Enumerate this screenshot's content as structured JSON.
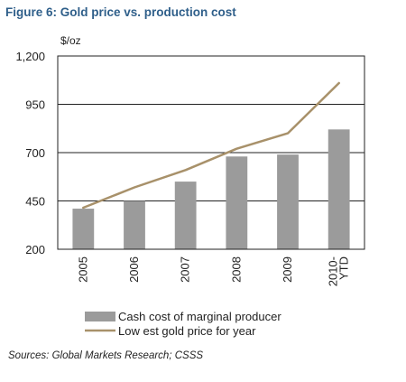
{
  "figure": {
    "title": "Figure 6: Gold price vs. production cost",
    "source": "Sources: Global Markets Research; CSSS"
  },
  "chart_data": {
    "type": "bar",
    "title": "Figure 6: Gold price vs. production cost",
    "xlabel": "",
    "ylabel": "$/oz",
    "ylim": [
      200,
      1200
    ],
    "yticks": [
      "1,200",
      "950",
      "700",
      "450",
      "200"
    ],
    "ytick_values": [
      1200,
      950,
      700,
      450,
      200
    ],
    "grid": true,
    "legend_position": "bottom",
    "categories": [
      {
        "lines": [
          "2005"
        ]
      },
      {
        "lines": [
          "2006"
        ]
      },
      {
        "lines": [
          "2007"
        ]
      },
      {
        "lines": [
          "2008"
        ]
      },
      {
        "lines": [
          "2009"
        ]
      },
      {
        "lines": [
          "2010-",
          "YTD"
        ]
      }
    ],
    "series": [
      {
        "name": "Cash cost of marginal producer",
        "type": "bar",
        "color": "#9b9b9b",
        "values": [
          410,
          450,
          550,
          680,
          690,
          820
        ]
      },
      {
        "name": "Low est gold price for year",
        "type": "line",
        "color": "#a8916a",
        "values": [
          415,
          520,
          610,
          720,
          800,
          1060
        ]
      }
    ]
  }
}
